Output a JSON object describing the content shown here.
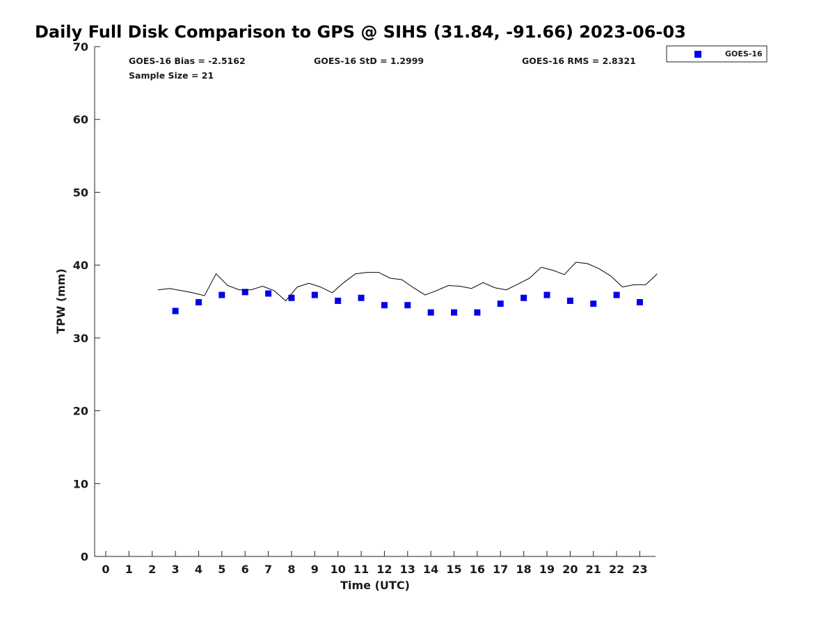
{
  "chart_data": {
    "type": "scatter",
    "title": "Daily Full Disk Comparison to GPS @ SIHS (31.84, -91.66) 2023-06-03",
    "xlabel": "Time (UTC)",
    "ylabel": "TPW (mm)",
    "xlim": [
      -0.5,
      23.8
    ],
    "ylim": [
      0,
      70
    ],
    "x_ticks": [
      "0",
      "1",
      "2",
      "3",
      "4",
      "5",
      "6",
      "7",
      "8",
      "9",
      "10",
      "11",
      "12",
      "13",
      "14",
      "15",
      "16",
      "17",
      "18",
      "19",
      "20",
      "21",
      "22",
      "23"
    ],
    "y_ticks": [
      "0",
      "10",
      "20",
      "30",
      "40",
      "50",
      "60",
      "70"
    ],
    "grid": false,
    "legend_position": "top-right",
    "stats": {
      "bias": "GOES-16 Bias = -2.5162",
      "std": "GOES-16 StD = 1.2999",
      "rms": "GOES-16 RMS = 2.8321",
      "sample_size": "Sample Size = 21"
    },
    "series": [
      {
        "name": "GOES-16",
        "kind": "scatter",
        "color": "#0000ee",
        "marker": "square",
        "x": [
          3,
          4,
          5,
          6,
          7,
          8,
          9,
          10,
          11,
          12,
          13,
          14,
          15,
          16,
          17,
          18,
          19,
          20,
          21,
          22,
          23
        ],
        "y": [
          33.7,
          34.9,
          35.9,
          36.3,
          36.1,
          35.5,
          35.9,
          35.1,
          35.5,
          34.5,
          34.5,
          33.5,
          33.5,
          33.5,
          34.7,
          35.5,
          35.9,
          35.1,
          34.7,
          35.9,
          34.9
        ]
      },
      {
        "kind": "line",
        "color": "#000000",
        "x": [
          2.25,
          2.75,
          3.25,
          3.75,
          4.25,
          4.75,
          5.25,
          5.75,
          6.25,
          6.75,
          7.25,
          7.75,
          8.25,
          8.75,
          9.25,
          9.75,
          10.25,
          10.75,
          11.25,
          11.75,
          12.25,
          12.75,
          13.25,
          13.75,
          14.25,
          14.75,
          15.25,
          15.75,
          16.25,
          16.75,
          17.25,
          17.75,
          18.25,
          18.75,
          19.25,
          19.75,
          20.25,
          20.75,
          21.25,
          21.75,
          22.25,
          22.75,
          23.25,
          23.75
        ],
        "y": [
          36.6,
          36.8,
          36.5,
          36.2,
          35.8,
          38.8,
          37.2,
          36.6,
          36.6,
          37.1,
          36.5,
          35.1,
          37.0,
          37.5,
          37.0,
          36.2,
          37.6,
          38.8,
          39.0,
          39.0,
          38.2,
          38.0,
          36.9,
          35.9,
          36.5,
          37.2,
          37.1,
          36.8,
          37.6,
          36.9,
          36.6,
          37.4,
          38.2,
          39.7,
          39.3,
          38.7,
          40.4,
          40.2,
          39.5,
          38.5,
          37.0,
          37.3,
          37.3,
          38.8
        ]
      }
    ]
  }
}
